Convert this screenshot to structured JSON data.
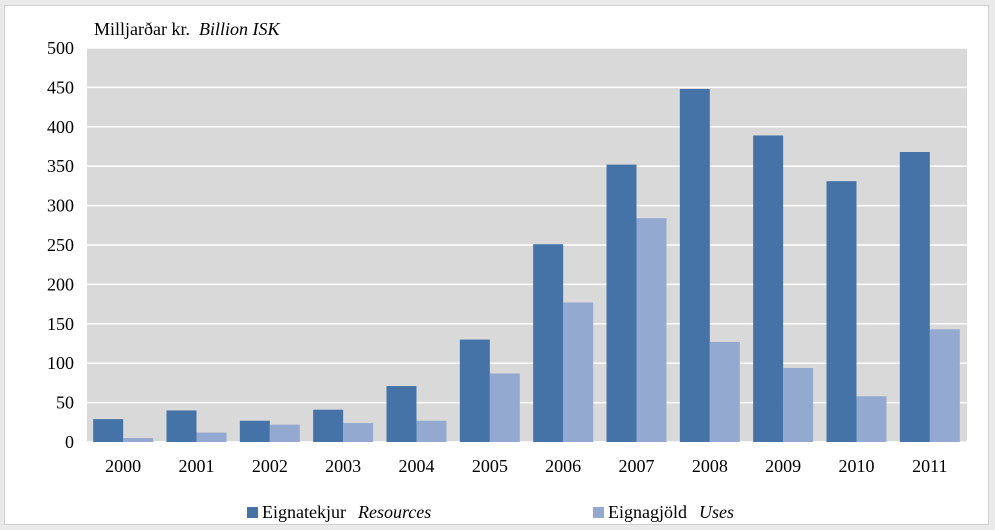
{
  "chart_data": {
    "type": "bar",
    "unit_label": "Milljarðar kr.",
    "unit_label_en": "Billion ISK",
    "ylim": [
      0,
      500
    ],
    "yticks": [
      "0",
      "50",
      "100",
      "150",
      "200",
      "250",
      "300",
      "350",
      "400",
      "450",
      "500"
    ],
    "grid": true,
    "plot_background": "#d9d9d9",
    "categories": [
      "2000",
      "2001",
      "2002",
      "2003",
      "2004",
      "2005",
      "2006",
      "2007",
      "2008",
      "2009",
      "2010",
      "2011"
    ],
    "series": [
      {
        "name": "Eignatekjur",
        "name_en": "Resources",
        "color": "#4572a7",
        "values": [
          29,
          40,
          27,
          41,
          71,
          130,
          251,
          352,
          448,
          389,
          331,
          368
        ]
      },
      {
        "name": "Eignagjöld",
        "name_en": "Uses",
        "color": "#93a9cf",
        "values": [
          5,
          12,
          22,
          24,
          27,
          87,
          177,
          284,
          127,
          94,
          58,
          143
        ]
      }
    ],
    "legend_position": "bottom"
  }
}
